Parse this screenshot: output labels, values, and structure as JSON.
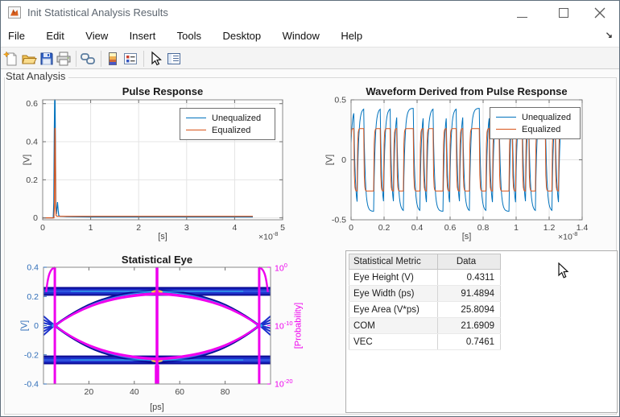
{
  "window": {
    "title": "Init Statistical Analysis Results",
    "dock_arrow": "↘"
  },
  "menu": {
    "items": [
      "File",
      "Edit",
      "View",
      "Insert",
      "Tools",
      "Desktop",
      "Window",
      "Help"
    ]
  },
  "toolbar": {
    "icons": [
      "new-file",
      "open-file",
      "save",
      "print",
      "link-plot",
      "insert-colorbar",
      "insert-legend",
      "edit-plot",
      "plot-browser"
    ]
  },
  "panel": {
    "label": "Stat Analysis"
  },
  "chart_data": [
    {
      "type": "line",
      "title": "Pulse Response",
      "xlabel": "[s]",
      "ylabel": "[V]",
      "x_exp": {
        "base": "×10",
        "exp": "-8"
      },
      "xlim": [
        0,
        5
      ],
      "ylim": [
        -0.01,
        0.62
      ],
      "xticks": [
        "0",
        "1",
        "2",
        "3",
        "4",
        "5"
      ],
      "yticks": [
        "0",
        "0.2",
        "0.4",
        "0.6"
      ],
      "grid": true,
      "legend_position": "northeast",
      "series": [
        {
          "name": "Unequalized",
          "color": "#0072BD",
          "points": [
            [
              0,
              0
            ],
            [
              0.22,
              0
            ],
            [
              0.232,
              0.08
            ],
            [
              0.242,
              0.45
            ],
            [
              0.25,
              0.62
            ],
            [
              0.258,
              0.62
            ],
            [
              0.266,
              0.35
            ],
            [
              0.274,
              0.06
            ],
            [
              0.285,
              0.02
            ],
            [
              0.295,
              0.05
            ],
            [
              0.308,
              0.083
            ],
            [
              0.322,
              0.04
            ],
            [
              0.335,
              0.012
            ],
            [
              0.36,
              0.008
            ],
            [
              0.5,
              0.006
            ],
            [
              1,
              0.005
            ],
            [
              1.5,
              0.005
            ],
            [
              2,
              0.005
            ],
            [
              2.5,
              0.005
            ],
            [
              3,
              0.005
            ],
            [
              3.5,
              0.005
            ],
            [
              4,
              0.005
            ],
            [
              4.38,
              0.005
            ]
          ]
        },
        {
          "name": "Equalized",
          "color": "#D95319",
          "points": [
            [
              0,
              0
            ],
            [
              0.235,
              0
            ],
            [
              0.243,
              0.06
            ],
            [
              0.25,
              0.3
            ],
            [
              0.255,
              0.47
            ],
            [
              0.26,
              0.47
            ],
            [
              0.266,
              0.28
            ],
            [
              0.272,
              0.05
            ],
            [
              0.28,
              0.012
            ],
            [
              0.3,
              0.008
            ],
            [
              0.5,
              0.008
            ],
            [
              1,
              0.008
            ],
            [
              1.5,
              0.008
            ],
            [
              2,
              0.008
            ],
            [
              2.5,
              0.008
            ],
            [
              3,
              0.008
            ],
            [
              3.5,
              0.008
            ],
            [
              4,
              0.008
            ],
            [
              4.38,
              0.008
            ]
          ]
        }
      ]
    },
    {
      "type": "line",
      "title": "Waveform Derived from Pulse Response",
      "xlabel": "[s]",
      "ylabel": "[V]",
      "x_exp": {
        "base": "×10",
        "exp": "-8"
      },
      "xlim": [
        0,
        1.4
      ],
      "ylim": [
        -0.5,
        0.5
      ],
      "xticks": [
        "0",
        "0.2",
        "0.4",
        "0.6",
        "0.8",
        "1",
        "1.2",
        "1.4"
      ],
      "yticks": [
        "-0.5",
        "0",
        "0.5"
      ],
      "grid": true,
      "legend_position": "northeast",
      "bit_pattern": "1011000110110100111001011000101101001110010110001011010011100101",
      "bit_period": 0.02,
      "samples_per_bit": 6,
      "series": [
        {
          "name": "Unequalized",
          "color": "#0072BD",
          "level": 0.43,
          "alpha": 0.32
        },
        {
          "name": "Equalized",
          "color": "#D95319",
          "level": 0.26,
          "alpha": 0.75
        }
      ]
    },
    {
      "type": "eye-diagram",
      "title": "Statistical Eye",
      "xlabel": "[ps]",
      "ylabel_left": "[V]",
      "ylabel_right": "[Probability]",
      "xlim": [
        0,
        100
      ],
      "ylim_left": [
        -0.4,
        0.4
      ],
      "xticks": [
        "20",
        "40",
        "60",
        "80"
      ],
      "yticks_left": [
        "-0.4",
        "-0.2",
        "0",
        "0.2",
        "0.4"
      ],
      "right_ticks": [
        {
          "base": "10",
          "exp": "0"
        },
        {
          "base": "10",
          "exp": "-10"
        },
        {
          "base": "10",
          "exp": "-20"
        }
      ],
      "grid": false,
      "rail_level": 0.235,
      "rail_half_width": 0.024,
      "eye_peak_top": 0.232,
      "eye_peak_bottom": -0.24,
      "contour_peak_top": 0.222,
      "contour_peak_bottom": -0.232,
      "crossings_ps": [
        5,
        50,
        95
      ],
      "colors": {
        "trace_dark": "#0a0a96",
        "trace_mid": "#1b30cc",
        "trace_light": "#2e55e0",
        "cyan": "#30c8f0",
        "hot_outer": "#ffd24a",
        "hot_inner": "#ff8a2e",
        "contour": "#ee00ee",
        "left_axis": "#2f6db8"
      }
    }
  ],
  "metrics_table": {
    "headers": [
      "Statistical Metric",
      "Data"
    ],
    "rows": [
      [
        "Eye Height (V)",
        "0.4311"
      ],
      [
        "Eye Width (ps)",
        "91.4894"
      ],
      [
        "Eye Area (V*ps)",
        "25.8094"
      ],
      [
        "COM",
        "21.6909"
      ],
      [
        "VEC",
        "0.7461"
      ]
    ]
  }
}
